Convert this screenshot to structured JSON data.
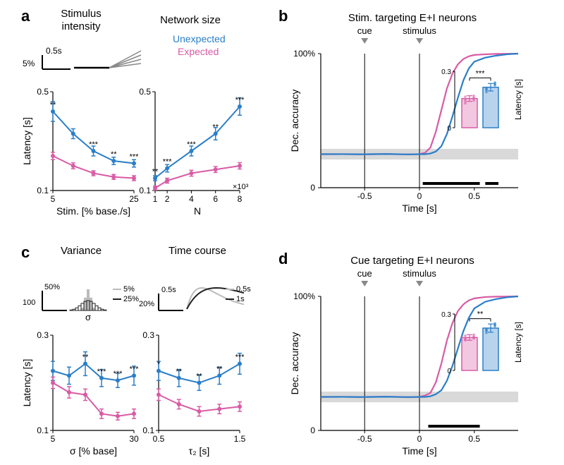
{
  "colors": {
    "unexpected": "#2a7ec9",
    "expected": "#d95ba5",
    "shade": "#d9d9d9",
    "axis": "#000000",
    "gray_line": "#b0b0b0",
    "dark_line": "#303030",
    "sig_bar": "#000000"
  },
  "panel_a": {
    "label": "a",
    "titles": [
      "Stimulus\nintensity",
      "Network size"
    ],
    "legend_unexp": "Unexpected",
    "legend_exp": "Expected",
    "scalebar_x": "0.5s",
    "scalebar_y": "5%",
    "left": {
      "ylabel": "Latency [s]",
      "ylim": [
        0.1,
        0.5
      ],
      "yticks": [
        0.1,
        0.5
      ],
      "xlabel": "Stim. [% base./s]",
      "xticks": [
        5,
        25
      ],
      "x": [
        5,
        10,
        15,
        20,
        25
      ],
      "unexp": {
        "y": [
          0.42,
          0.33,
          0.26,
          0.22,
          0.21
        ],
        "err": [
          0.04,
          0.02,
          0.02,
          0.015,
          0.015
        ]
      },
      "exp": {
        "y": [
          0.24,
          0.2,
          0.17,
          0.155,
          0.15
        ],
        "err": [
          0.015,
          0.012,
          0.01,
          0.01,
          0.01
        ]
      },
      "sig": [
        "**",
        "",
        "***",
        "**",
        "***"
      ]
    },
    "right": {
      "ylim": [
        0.1,
        0.5
      ],
      "yticks": [
        0.1,
        0.5
      ],
      "xlabel": "N",
      "xticks": [
        1,
        2,
        4,
        6,
        8
      ],
      "xnote": "×10³",
      "x": [
        1,
        2,
        4,
        6,
        8
      ],
      "unexp": {
        "y": [
          0.15,
          0.19,
          0.26,
          0.33,
          0.44
        ],
        "err": [
          0.01,
          0.015,
          0.02,
          0.025,
          0.035
        ]
      },
      "exp": {
        "y": [
          0.11,
          0.14,
          0.17,
          0.185,
          0.2
        ],
        "err": [
          0.008,
          0.01,
          0.012,
          0.012,
          0.013
        ]
      },
      "sig": [
        "**",
        "***",
        "***",
        "**",
        "***"
      ]
    }
  },
  "panel_b": {
    "label": "b",
    "title": "Stim. targeting E+I neurons",
    "cue_label": "cue",
    "stim_label": "stimulus",
    "ylabel": "Dec. accuracy",
    "yticks": [
      "0",
      "100%"
    ],
    "xlabel": "Time [s]",
    "xticks": [
      -0.5,
      0,
      0.5
    ],
    "xlim": [
      -0.9,
      0.9
    ],
    "shade_level": 0.25,
    "shade_width": 0.04,
    "cue_x": -0.5,
    "stim_x": 0,
    "time": [
      -0.9,
      -0.7,
      -0.5,
      -0.3,
      -0.1,
      0,
      0.05,
      0.1,
      0.15,
      0.2,
      0.25,
      0.3,
      0.35,
      0.4,
      0.45,
      0.5,
      0.6,
      0.7,
      0.8,
      0.9
    ],
    "exp_y": [
      0.25,
      0.25,
      0.25,
      0.25,
      0.25,
      0.25,
      0.26,
      0.3,
      0.42,
      0.58,
      0.74,
      0.85,
      0.92,
      0.96,
      0.98,
      0.99,
      0.995,
      0.998,
      0.999,
      1.0
    ],
    "unexp_y": [
      0.25,
      0.25,
      0.25,
      0.25,
      0.25,
      0.25,
      0.25,
      0.255,
      0.27,
      0.31,
      0.4,
      0.53,
      0.67,
      0.8,
      0.89,
      0.94,
      0.97,
      0.985,
      0.995,
      1.0
    ],
    "sig_segments": [
      [
        0.03,
        0.55
      ],
      [
        0.6,
        0.72
      ]
    ],
    "inset": {
      "ylabel": "Latency [s]",
      "ylim": [
        0,
        0.3
      ],
      "yticks": [
        0,
        0.3
      ],
      "exp": {
        "mean": 0.155,
        "err": 0.015,
        "pts": [
          0.14,
          0.16,
          0.13,
          0.17,
          0.15,
          0.155,
          0.165,
          0.145
        ]
      },
      "unexp": {
        "mean": 0.215,
        "err": 0.02,
        "pts": [
          0.19,
          0.23,
          0.2,
          0.24,
          0.21,
          0.225,
          0.205,
          0.235
        ]
      },
      "sig": "***"
    }
  },
  "panel_c": {
    "label": "c",
    "titles": [
      "Variance",
      "Time course"
    ],
    "left_inset": {
      "scalebar_x": "50%",
      "scalebar_y": "100",
      "leg1": "5%",
      "leg2": "25%",
      "sigma": "σ"
    },
    "right_inset": {
      "scalebar_x": "0.5s",
      "scalebar_y": "20%",
      "leg1": "0.5s",
      "leg2": "1s"
    },
    "left": {
      "ylabel": "Latency [s]",
      "ylim": [
        0.1,
        0.3
      ],
      "yticks": [
        0.1,
        0.3
      ],
      "xlabel": "σ [% base]",
      "xticks": [
        5,
        30
      ],
      "x": [
        5,
        10,
        15,
        20,
        25,
        30
      ],
      "unexp": {
        "y": [
          0.225,
          0.215,
          0.24,
          0.21,
          0.205,
          0.215
        ],
        "err": [
          0.02,
          0.018,
          0.025,
          0.018,
          0.015,
          0.02
        ]
      },
      "exp": {
        "y": [
          0.2,
          0.18,
          0.175,
          0.135,
          0.13,
          0.135
        ],
        "err": [
          0.012,
          0.012,
          0.012,
          0.01,
          0.008,
          0.01
        ]
      },
      "sig": [
        "",
        "",
        "**",
        "***",
        "***",
        "***"
      ]
    },
    "right": {
      "ylim": [
        0.1,
        0.3
      ],
      "yticks": [
        0.1,
        0.3
      ],
      "xlabel": "τ₂ [s]",
      "xticks": [
        0.5,
        1.5
      ],
      "x": [
        0.5,
        0.75,
        1.0,
        1.25,
        1.5
      ],
      "unexp": {
        "y": [
          0.225,
          0.21,
          0.2,
          0.215,
          0.24
        ],
        "err": [
          0.02,
          0.018,
          0.016,
          0.018,
          0.022
        ]
      },
      "exp": {
        "y": [
          0.175,
          0.155,
          0.14,
          0.145,
          0.15
        ],
        "err": [
          0.012,
          0.01,
          0.01,
          0.01,
          0.01
        ]
      },
      "sig": [
        "*",
        "**",
        "**",
        "**",
        "***"
      ]
    }
  },
  "panel_d": {
    "label": "d",
    "title": "Cue targeting E+I neurons",
    "cue_label": "cue",
    "stim_label": "stimulus",
    "ylabel": "Dec. accuracy",
    "yticks": [
      "0",
      "100%"
    ],
    "xlabel": "Time [s]",
    "xticks": [
      -0.5,
      0,
      0.5
    ],
    "xlim": [
      -0.9,
      0.9
    ],
    "shade_level": 0.25,
    "shade_width": 0.04,
    "cue_x": -0.5,
    "stim_x": 0,
    "time": [
      -0.9,
      -0.7,
      -0.5,
      -0.3,
      -0.1,
      0,
      0.05,
      0.1,
      0.15,
      0.2,
      0.25,
      0.3,
      0.35,
      0.4,
      0.45,
      0.5,
      0.6,
      0.7,
      0.8,
      0.9
    ],
    "exp_y": [
      0.25,
      0.25,
      0.25,
      0.25,
      0.25,
      0.25,
      0.26,
      0.28,
      0.36,
      0.5,
      0.67,
      0.8,
      0.89,
      0.94,
      0.97,
      0.985,
      0.995,
      0.998,
      0.999,
      1.0
    ],
    "unexp_y": [
      0.25,
      0.25,
      0.25,
      0.25,
      0.25,
      0.25,
      0.25,
      0.255,
      0.27,
      0.3,
      0.37,
      0.48,
      0.61,
      0.74,
      0.84,
      0.91,
      0.96,
      0.98,
      0.993,
      1.0
    ],
    "sig_segments": [
      [
        0.08,
        0.55
      ]
    ],
    "inset": {
      "ylabel": "Latency [s]",
      "ylim": [
        0,
        0.3
      ],
      "yticks": [
        0,
        0.3
      ],
      "exp": {
        "mean": 0.175,
        "err": 0.015,
        "pts": [
          0.16,
          0.18,
          0.17,
          0.19,
          0.165,
          0.175,
          0.185,
          0.17
        ]
      },
      "unexp": {
        "mean": 0.225,
        "err": 0.022,
        "pts": [
          0.2,
          0.24,
          0.21,
          0.25,
          0.22,
          0.235,
          0.215,
          0.245
        ]
      },
      "sig": "**"
    }
  }
}
